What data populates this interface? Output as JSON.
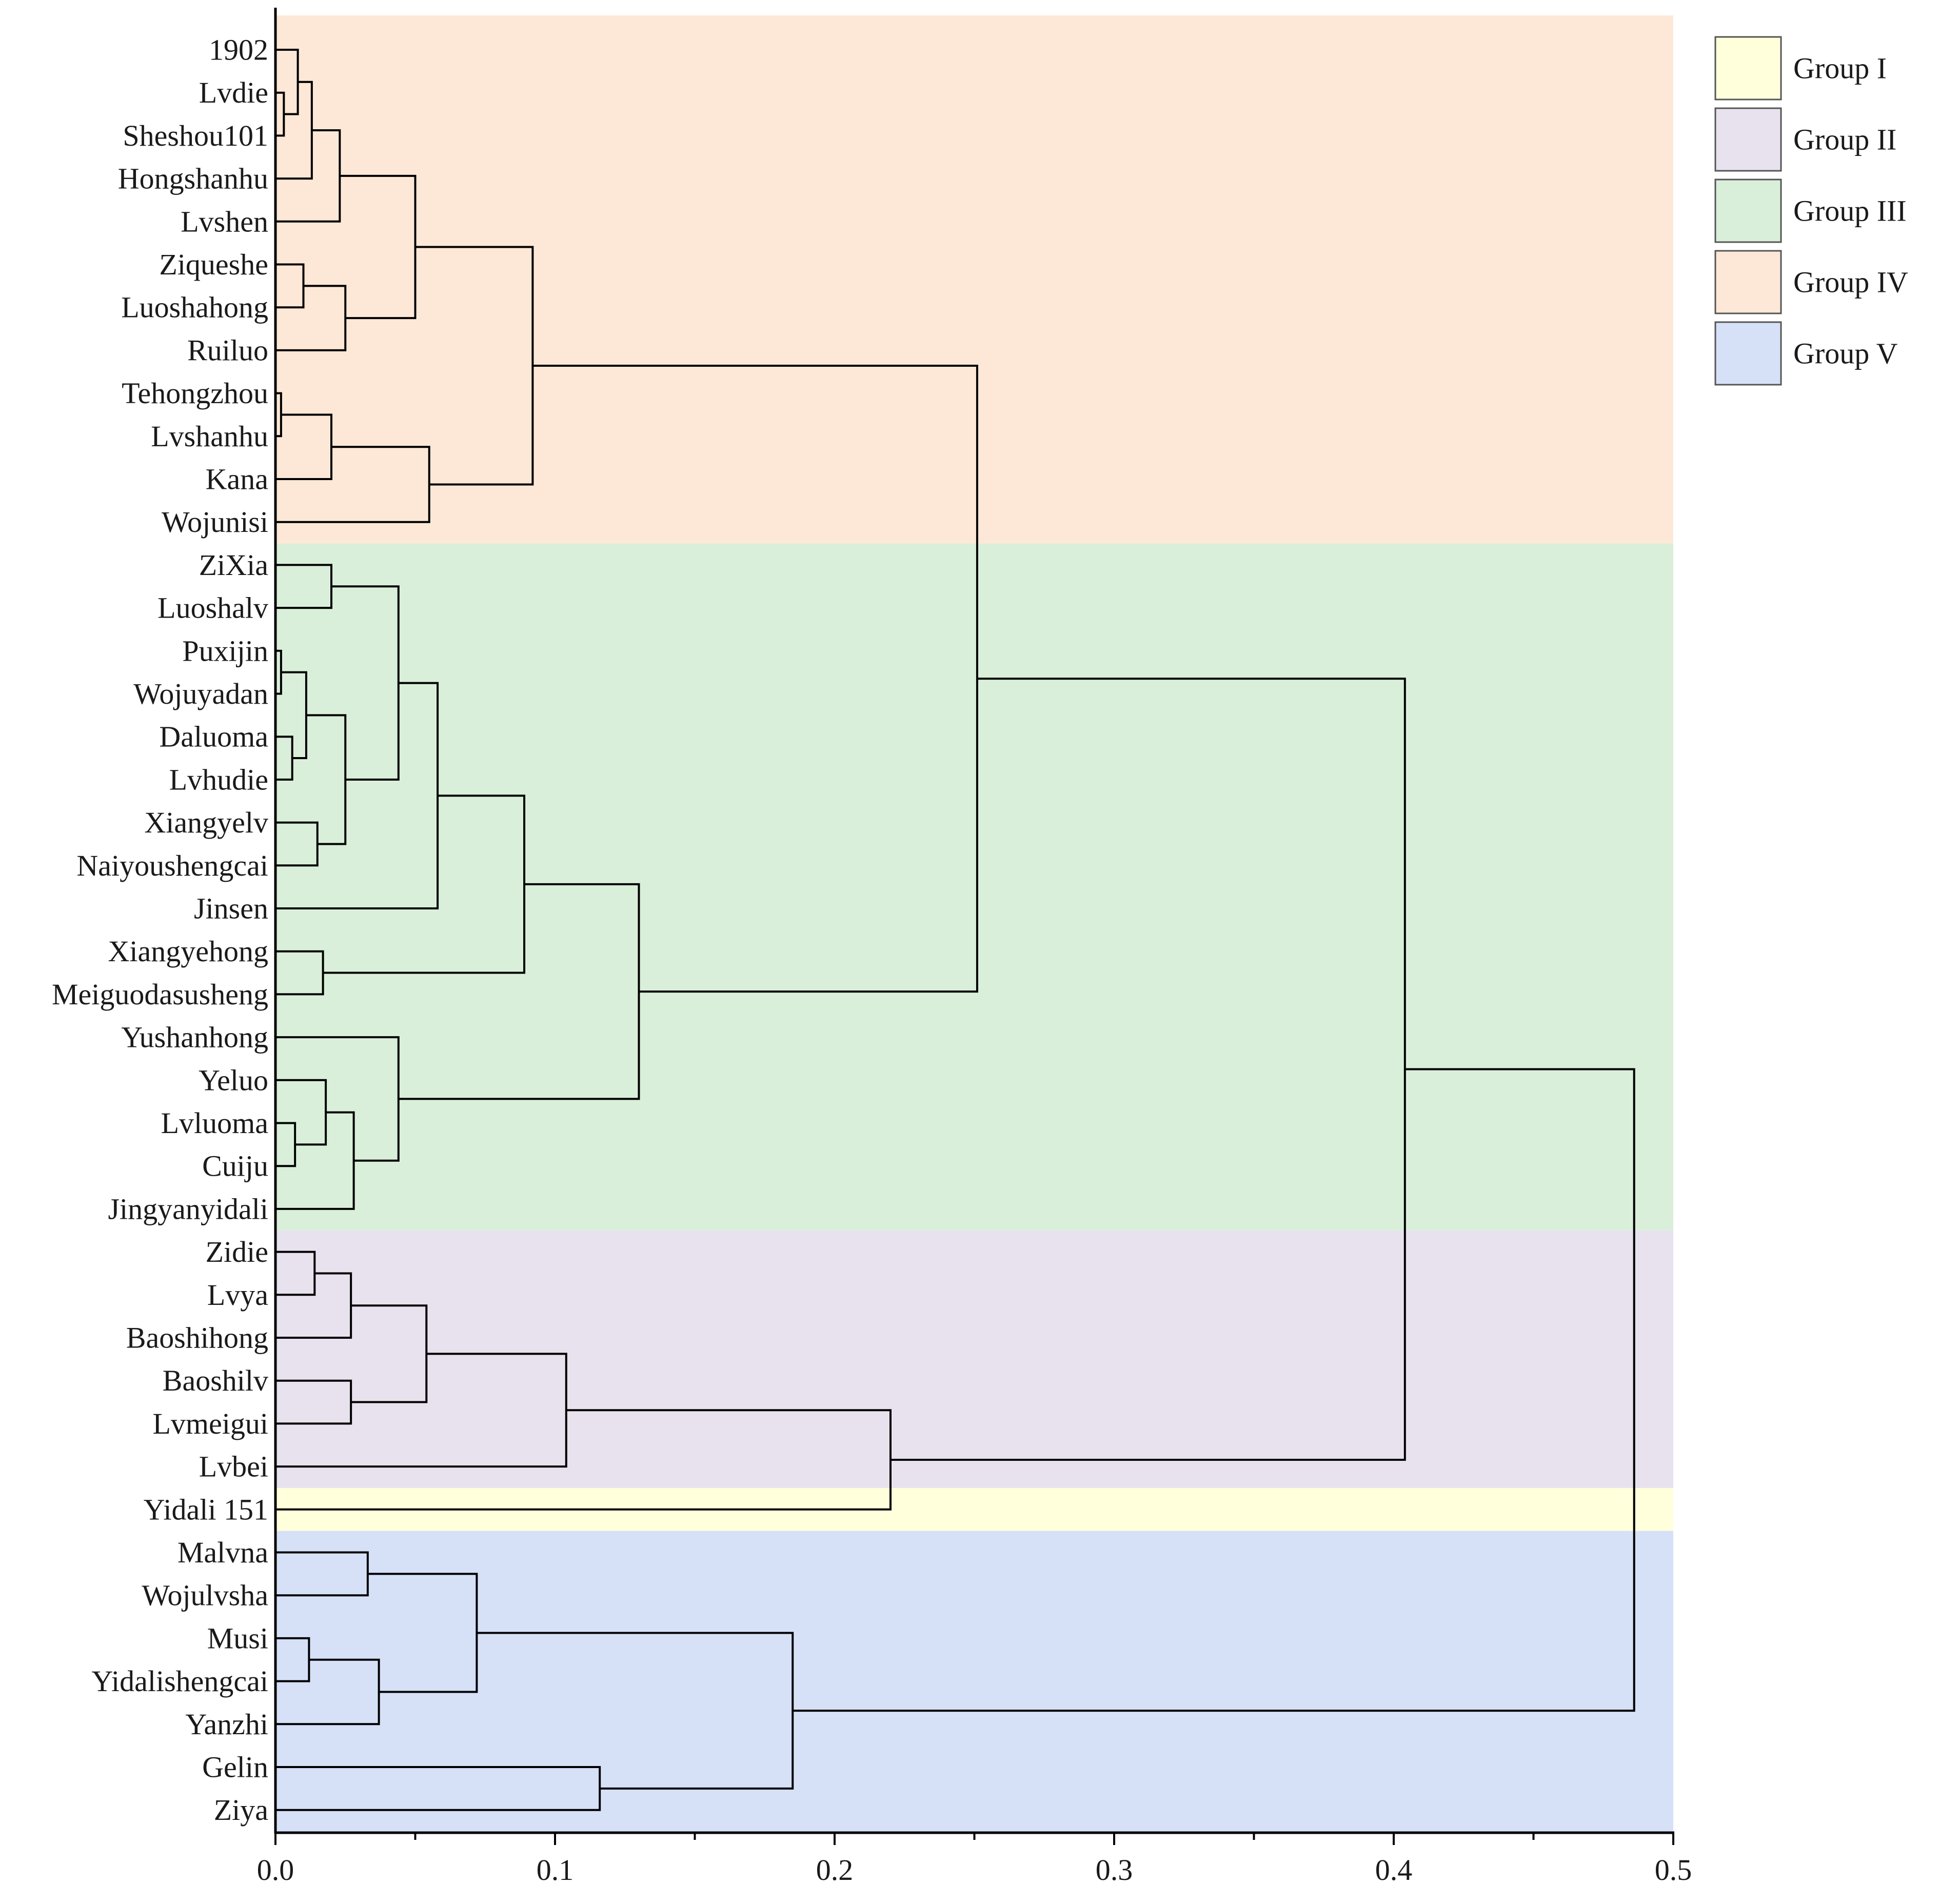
{
  "chart_data": {
    "type": "dendrogram",
    "x_axis": {
      "range": [
        0,
        0.5
      ],
      "ticks": [
        0.0,
        0.1,
        0.2,
        0.3,
        0.4,
        0.5
      ],
      "tick_labels": [
        "0.0",
        "0.1",
        "0.2",
        "0.3",
        "0.4",
        "0.5"
      ],
      "minor_step": 0.05
    },
    "leaves": [
      "1902",
      "Lvdie",
      "Sheshou101",
      "Hongshanhu",
      "Lvshen",
      "Ziqueshe",
      "Luoshahong",
      "Ruiluo",
      "Tehongzhou",
      "Lvshanhu",
      "Kana",
      "Wojunisi",
      "ZiXia",
      "Luoshalv",
      "Puxijin",
      "Wojuyadan",
      "Daluoma",
      "Lvhudie",
      "Xiangyelv",
      "Naiyoushengcai",
      "Jinsen",
      "Xiangyehong",
      "Meiguodasusheng",
      "Yushanhong",
      "Yeluo",
      "Lvluoma",
      "Cuiju",
      "Jingyanyidali",
      "Zidie",
      "Lvya",
      "Baoshihong",
      "Baoshilv",
      "Lvmeigui",
      "Lvbei",
      "Yidali 151",
      "Malvna",
      "Wojulvsha",
      "Musi",
      "Yidalishengcai",
      "Yanzhi",
      "Gelin",
      "Ziya"
    ],
    "merges": [
      {
        "a": "L1",
        "b": "L2",
        "height": 0.003
      },
      {
        "a": "L0",
        "b": "N0",
        "height": 0.008
      },
      {
        "a": "N1",
        "b": "L3",
        "height": 0.013
      },
      {
        "a": "N2",
        "b": "L4",
        "height": 0.023
      },
      {
        "a": "L5",
        "b": "L6",
        "height": 0.01
      },
      {
        "a": "N4",
        "b": "L7",
        "height": 0.025
      },
      {
        "a": "N3",
        "b": "N5",
        "height": 0.05
      },
      {
        "a": "L8",
        "b": "L9",
        "height": 0.002
      },
      {
        "a": "N7",
        "b": "L10",
        "height": 0.02
      },
      {
        "a": "N8",
        "b": "L11",
        "height": 0.055
      },
      {
        "a": "N6",
        "b": "N9",
        "height": 0.092
      },
      {
        "a": "L12",
        "b": "L13",
        "height": 0.02
      },
      {
        "a": "L14",
        "b": "L15",
        "height": 0.002
      },
      {
        "a": "L16",
        "b": "L17",
        "height": 0.006
      },
      {
        "a": "N12",
        "b": "N13",
        "height": 0.011
      },
      {
        "a": "L18",
        "b": "L19",
        "height": 0.015
      },
      {
        "a": "N14",
        "b": "N15",
        "height": 0.025
      },
      {
        "a": "N11",
        "b": "N16",
        "height": 0.044
      },
      {
        "a": "N17",
        "b": "L20",
        "height": 0.058
      },
      {
        "a": "L21",
        "b": "L22",
        "height": 0.017
      },
      {
        "a": "N18",
        "b": "N19",
        "height": 0.089
      },
      {
        "a": "L25",
        "b": "L26",
        "height": 0.007
      },
      {
        "a": "L24",
        "b": "N21",
        "height": 0.018
      },
      {
        "a": "N22",
        "b": "L27",
        "height": 0.028
      },
      {
        "a": "L23",
        "b": "N23",
        "height": 0.044
      },
      {
        "a": "N20",
        "b": "N24",
        "height": 0.13
      },
      {
        "a": "N10",
        "b": "N25",
        "height": 0.251
      },
      {
        "a": "L28",
        "b": "L29",
        "height": 0.014
      },
      {
        "a": "N27",
        "b": "L30",
        "height": 0.027
      },
      {
        "a": "L31",
        "b": "L32",
        "height": 0.027
      },
      {
        "a": "N28",
        "b": "N29",
        "height": 0.054
      },
      {
        "a": "N30",
        "b": "L33",
        "height": 0.104
      },
      {
        "a": "N31",
        "b": "L34",
        "height": 0.22
      },
      {
        "a": "N26",
        "b": "N32",
        "height": 0.404
      },
      {
        "a": "L35",
        "b": "L36",
        "height": 0.033
      },
      {
        "a": "L37",
        "b": "L38",
        "height": 0.012
      },
      {
        "a": "N35",
        "b": "L39",
        "height": 0.037
      },
      {
        "a": "N34",
        "b": "N36",
        "height": 0.072
      },
      {
        "a": "L40",
        "b": "L41",
        "height": 0.116
      },
      {
        "a": "N37",
        "b": "N38",
        "height": 0.185
      },
      {
        "a": "N33",
        "b": "N39",
        "height": 0.486
      }
    ],
    "groups": [
      {
        "name": "Group I",
        "color": "#ffffdc",
        "first": 34,
        "last": 34
      },
      {
        "name": "Group II",
        "color": "#e8e2ef",
        "first": 28,
        "last": 33
      },
      {
        "name": "Group III",
        "color": "#d9efda",
        "first": 12,
        "last": 27
      },
      {
        "name": "Group IV",
        "color": "#fde8d7",
        "first": 0,
        "last": 11
      },
      {
        "name": "Group V",
        "color": "#d6e1f8",
        "first": 35,
        "last": 41
      }
    ],
    "legend": [
      "Group I",
      "Group II",
      "Group III",
      "Group IV",
      "Group V"
    ],
    "legend_position": "top-right"
  }
}
